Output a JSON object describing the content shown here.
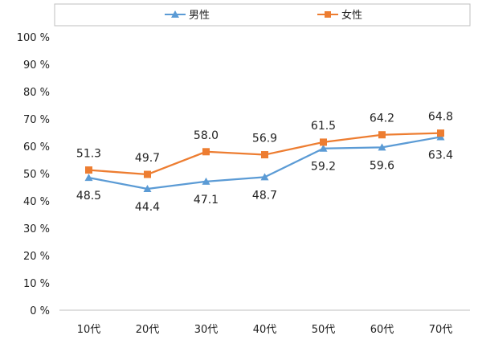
{
  "chart_data": {
    "type": "line",
    "categories": [
      "10代",
      "20代",
      "30代",
      "40代",
      "50代",
      "60代",
      "70代"
    ],
    "series": [
      {
        "name": "男性",
        "values": [
          48.5,
          44.4,
          47.1,
          48.7,
          59.2,
          59.6,
          63.4
        ],
        "color": "#5B9BD5",
        "marker": "triangle",
        "label_position": "below"
      },
      {
        "name": "女性",
        "values": [
          51.3,
          49.7,
          58.0,
          56.9,
          61.5,
          64.2,
          64.8
        ],
        "color": "#ED7D31",
        "marker": "square",
        "label_position": "above"
      }
    ],
    "ylim": [
      0,
      100
    ],
    "yticks": [
      0,
      10,
      20,
      30,
      40,
      50,
      60,
      70,
      80,
      90,
      100
    ],
    "ytick_suffix": " %",
    "grid": false,
    "legend_position": "top"
  }
}
